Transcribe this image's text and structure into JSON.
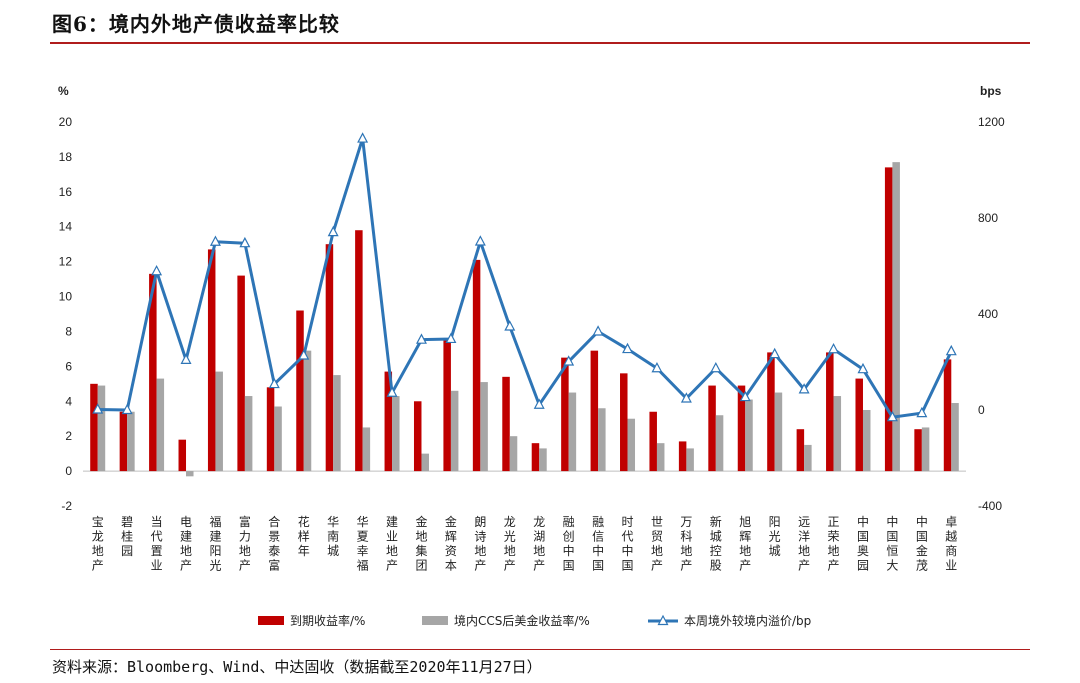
{
  "header": {
    "title": "图6：境内外地产债收益率比较"
  },
  "footer": {
    "source": "资料来源：Bloomberg、Wind、中达固收（数据截至2020年11月27日）"
  },
  "chart_data": {
    "type": "bar",
    "title": "",
    "categories": [
      "宝龙地产",
      "碧桂园",
      "当代置业",
      "电建地产",
      "福建阳光",
      "富力地产",
      "合景泰富",
      "花样年",
      "华南城",
      "华夏幸福",
      "建业地产",
      "金地集团",
      "金辉资本",
      "朗诗地产",
      "龙光地产",
      "龙湖地产",
      "融创中国",
      "融信中国",
      "时代中国",
      "世贸地产",
      "万科地产",
      "新城控股",
      "旭辉地产",
      "阳光城",
      "远洋地产",
      "正荣地产",
      "中国奥园",
      "中国恒大",
      "中国金茂",
      "卓越商业"
    ],
    "y_left": {
      "unit": "%",
      "ylim": [
        -2,
        20
      ],
      "ticks": [
        -2,
        0,
        2,
        4,
        6,
        8,
        10,
        12,
        14,
        16,
        18,
        20
      ]
    },
    "y_right": {
      "unit": "bps",
      "ylim": [
        -400,
        1200
      ],
      "ticks": [
        -400,
        0,
        400,
        800,
        1200
      ]
    },
    "legend_placement": "bottom",
    "series": [
      {
        "name": "到期收益率/%",
        "type": "bar",
        "axis": "left",
        "color": "#c00000",
        "values": [
          5.0,
          3.4,
          11.3,
          1.8,
          12.7,
          11.2,
          4.8,
          9.2,
          13.0,
          13.8,
          5.7,
          4.0,
          7.5,
          12.1,
          5.4,
          1.6,
          6.5,
          6.9,
          5.6,
          3.4,
          1.7,
          4.9,
          4.9,
          6.8,
          2.4,
          6.8,
          5.3,
          17.4,
          2.4,
          6.4
        ]
      },
      {
        "name": "境内CCS后美金收益率/%",
        "type": "bar",
        "axis": "left",
        "color": "#a6a6a6",
        "values": [
          4.9,
          3.4,
          5.3,
          -0.3,
          5.7,
          4.3,
          3.7,
          6.9,
          5.5,
          2.5,
          4.3,
          1.0,
          4.6,
          5.1,
          2.0,
          1.3,
          4.5,
          3.6,
          3.0,
          1.6,
          1.3,
          3.2,
          4.1,
          4.5,
          1.5,
          4.3,
          3.5,
          17.7,
          2.5,
          3.9
        ]
      },
      {
        "name": "本周境外较境内溢价/bp",
        "type": "line",
        "axis": "right",
        "color": "#2e75b6",
        "values": [
          2,
          0,
          578,
          209,
          701,
          695,
          108,
          227,
          741,
          1131,
          72,
          293,
          296,
          702,
          348,
          22,
          202,
          327,
          254,
          174,
          48,
          174,
          54,
          233,
          86,
          253,
          170,
          -30,
          -13,
          245
        ]
      }
    ]
  }
}
